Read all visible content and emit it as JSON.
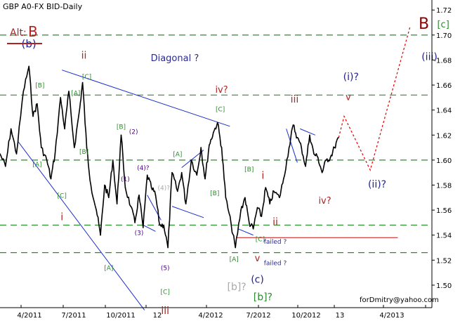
{
  "chart_data": {
    "type": "line",
    "title": "GBP A0-FX BID-Daily",
    "alt_label": {
      "prefix": "Alt:",
      "value": "B"
    },
    "corner_label": "B",
    "watermark": "forDmitry@yahoo.com",
    "x_ticks": [
      "4/2011",
      "7/2011",
      "10/2011",
      "12",
      "4/2012",
      "7/2012",
      "10/2012",
      "13",
      "4/2013"
    ],
    "y_ticks": [
      "1.72",
      "1.70",
      "1.68",
      "1.66",
      "1.64",
      "1.62",
      "1.60",
      "1.58",
      "1.56",
      "1.54",
      "1.52",
      "1.50"
    ],
    "ylim": [
      1.482,
      1.728
    ],
    "xlim": [
      0,
      25
    ],
    "grid": false,
    "colors": {
      "price": "#000000",
      "trendline": "#1a2ecc",
      "level": "#2e8b2e",
      "projection": "#dd1111",
      "support": "#cc1111",
      "wave_green": "#2e8b2e",
      "wave_red": "#b22222",
      "wave_navy": "#1f1f8f",
      "wave_purple": "#4b0082",
      "wave_gray": "#a9a9a9",
      "annotation_navy": "#2b2b8f",
      "axis_text": "#000000",
      "alt_red": "#b22222",
      "corner_red": "#8b0000"
    },
    "series": [
      {
        "values": [
          [
            0,
            1.605
          ],
          [
            0.4,
            1.595
          ],
          [
            0.8,
            1.625
          ],
          [
            1.2,
            1.605
          ],
          [
            1.7,
            1.655
          ],
          [
            2.1,
            1.675
          ],
          [
            2.4,
            1.635
          ],
          [
            2.7,
            1.645
          ],
          [
            3.0,
            1.61
          ],
          [
            3.4,
            1.6
          ],
          [
            3.7,
            1.585
          ],
          [
            4.0,
            1.605
          ],
          [
            4.4,
            1.65
          ],
          [
            4.7,
            1.625
          ],
          [
            5.0,
            1.655
          ],
          [
            5.4,
            1.61
          ],
          [
            5.8,
            1.642
          ],
          [
            6.0,
            1.662
          ],
          [
            6.3,
            1.61
          ],
          [
            6.6,
            1.58
          ],
          [
            7.0,
            1.56
          ],
          [
            7.3,
            1.54
          ],
          [
            7.6,
            1.58
          ],
          [
            7.9,
            1.57
          ],
          [
            8.2,
            1.6
          ],
          [
            8.5,
            1.565
          ],
          [
            8.8,
            1.62
          ],
          [
            9.1,
            1.578
          ],
          [
            9.5,
            1.563
          ],
          [
            9.8,
            1.55
          ],
          [
            10.1,
            1.572
          ],
          [
            10.4,
            1.546
          ],
          [
            10.7,
            1.588
          ],
          [
            11.0,
            1.578
          ],
          [
            11.3,
            1.572
          ],
          [
            11.6,
            1.548
          ],
          [
            11.9,
            1.548
          ],
          [
            12.2,
            1.53
          ],
          [
            12.5,
            1.59
          ],
          [
            12.9,
            1.575
          ],
          [
            13.2,
            1.59
          ],
          [
            13.5,
            1.565
          ],
          [
            13.9,
            1.6
          ],
          [
            14.3,
            1.588
          ],
          [
            14.6,
            1.61
          ],
          [
            14.9,
            1.585
          ],
          [
            15.2,
            1.612
          ],
          [
            15.5,
            1.622
          ],
          [
            15.8,
            1.63
          ],
          [
            16.1,
            1.61
          ],
          [
            16.4,
            1.57
          ],
          [
            16.8,
            1.548
          ],
          [
            17.1,
            1.53
          ],
          [
            17.5,
            1.56
          ],
          [
            17.8,
            1.57
          ],
          [
            18.1,
            1.55
          ],
          [
            18.4,
            1.545
          ],
          [
            18.7,
            1.562
          ],
          [
            19.0,
            1.555
          ],
          [
            19.3,
            1.578
          ],
          [
            19.6,
            1.565
          ],
          [
            19.9,
            1.575
          ],
          [
            20.3,
            1.57
          ],
          [
            20.6,
            1.585
          ],
          [
            21.0,
            1.61
          ],
          [
            21.3,
            1.628
          ],
          [
            21.6,
            1.618
          ],
          [
            21.9,
            1.61
          ],
          [
            22.2,
            1.595
          ],
          [
            22.5,
            1.62
          ],
          [
            22.8,
            1.605
          ],
          [
            23.1,
            1.602
          ],
          [
            23.4,
            1.59
          ],
          [
            23.7,
            1.6
          ],
          [
            24.0,
            1.602
          ],
          [
            24.3,
            1.61
          ],
          [
            24.6,
            1.618
          ]
        ]
      }
    ],
    "projection": [
      [
        24.6,
        1.618
      ],
      [
        25.0,
        1.635
      ],
      [
        26.9,
        1.592
      ],
      [
        29.8,
        1.707
      ]
    ],
    "levels": [
      1.7,
      1.652,
      1.6,
      1.548,
      1.526
    ],
    "support_line": {
      "from": [
        17.2,
        1.538
      ],
      "to": [
        28.9,
        1.538
      ]
    },
    "trendlines": [
      {
        "from": [
          4.5,
          1.672
        ],
        "to": [
          16.7,
          1.627
        ]
      },
      {
        "from": [
          1.3,
          1.615
        ],
        "to": [
          10.5,
          1.48
        ]
      },
      {
        "from": [
          13.2,
          1.594
        ],
        "to": [
          14.8,
          1.608
        ]
      },
      {
        "from": [
          12.5,
          1.563
        ],
        "to": [
          14.8,
          1.554
        ]
      },
      {
        "from": [
          10.7,
          1.572
        ],
        "to": [
          11.7,
          1.552
        ]
      },
      {
        "from": [
          10.4,
          1.548
        ],
        "to": [
          11.3,
          1.543
        ]
      },
      {
        "from": [
          17.3,
          1.545
        ],
        "to": [
          18.4,
          1.54
        ]
      },
      {
        "from": [
          20.8,
          1.625
        ],
        "to": [
          21.6,
          1.598
        ]
      },
      {
        "from": [
          21.8,
          1.625
        ],
        "to": [
          22.9,
          1.62
        ]
      }
    ],
    "wave_labels": [
      {
        "text": "(b)",
        "x": 2.1,
        "y": 1.69,
        "color": "wave_navy",
        "size": 15
      },
      {
        "text": "[B]",
        "x": 2.9,
        "y": 1.658,
        "color": "wave_green",
        "size": 9
      },
      {
        "text": "[A]",
        "x": 2.7,
        "y": 1.595,
        "color": "wave_green",
        "size": 9
      },
      {
        "text": "[C]",
        "x": 4.5,
        "y": 1.57,
        "color": "wave_green",
        "size": 9
      },
      {
        "text": "i",
        "x": 4.5,
        "y": 1.552,
        "color": "wave_red",
        "size": 14
      },
      {
        "text": "ii",
        "x": 6.1,
        "y": 1.681,
        "color": "wave_red",
        "size": 14
      },
      {
        "text": "[C]",
        "x": 6.3,
        "y": 1.665,
        "color": "wave_green",
        "size": 9
      },
      {
        "text": "[A]",
        "x": 5.5,
        "y": 1.652,
        "color": "wave_green",
        "size": 9
      },
      {
        "text": "[B]",
        "x": 6.1,
        "y": 1.605,
        "color": "wave_green",
        "size": 9
      },
      {
        "text": "[B]",
        "x": 8.8,
        "y": 1.625,
        "color": "wave_green",
        "size": 9
      },
      {
        "text": "(2)",
        "x": 9.7,
        "y": 1.621,
        "color": "wave_purple",
        "size": 9
      },
      {
        "text": "(1)",
        "x": 9.1,
        "y": 1.583,
        "color": "wave_purple",
        "size": 9
      },
      {
        "text": "(4)?",
        "x": 10.4,
        "y": 1.592,
        "color": "wave_purple",
        "size": 9
      },
      {
        "text": "(4)?",
        "x": 11.9,
        "y": 1.576,
        "color": "wave_gray",
        "size": 9
      },
      {
        "text": "(3)",
        "x": 10.1,
        "y": 1.54,
        "color": "wave_purple",
        "size": 9
      },
      {
        "text": "(5)",
        "x": 12.0,
        "y": 1.512,
        "color": "wave_purple",
        "size": 9
      },
      {
        "text": "[A]",
        "x": 7.9,
        "y": 1.512,
        "color": "wave_green",
        "size": 9
      },
      {
        "text": "[C]",
        "x": 12.0,
        "y": 1.493,
        "color": "wave_green",
        "size": 9
      },
      {
        "text": "iii",
        "x": 12.0,
        "y": 1.477,
        "color": "wave_red",
        "size": 14
      },
      {
        "text": "Diagonal ?",
        "x": 12.7,
        "y": 1.679,
        "color": "annotation_navy",
        "size": 13
      },
      {
        "text": "[A]",
        "x": 12.9,
        "y": 1.603,
        "color": "wave_green",
        "size": 9
      },
      {
        "text": "[B]",
        "x": 15.6,
        "y": 1.572,
        "color": "wave_green",
        "size": 9
      },
      {
        "text": "iv?",
        "x": 16.1,
        "y": 1.654,
        "color": "wave_red",
        "size": 13
      },
      {
        "text": "[C]",
        "x": 16.0,
        "y": 1.639,
        "color": "wave_green",
        "size": 9
      },
      {
        "text": "[A]",
        "x": 17.0,
        "y": 1.519,
        "color": "wave_green",
        "size": 9
      },
      {
        "text": "[b]?",
        "x": 17.2,
        "y": 1.496,
        "color": "wave_gray",
        "size": 14
      },
      {
        "text": "[B]",
        "x": 18.1,
        "y": 1.591,
        "color": "wave_green",
        "size": 9
      },
      {
        "text": "i",
        "x": 19.1,
        "y": 1.585,
        "color": "wave_red",
        "size": 14
      },
      {
        "text": "ii",
        "x": 20.0,
        "y": 1.548,
        "color": "wave_red",
        "size": 14
      },
      {
        "text": "[C]",
        "x": 18.9,
        "y": 1.535,
        "color": "wave_green",
        "size": 9
      },
      {
        "text": "v",
        "x": 18.7,
        "y": 1.519,
        "color": "wave_red",
        "size": 13
      },
      {
        "text": "(c)",
        "x": 18.7,
        "y": 1.502,
        "color": "wave_navy",
        "size": 14
      },
      {
        "text": "[b]?",
        "x": 19.1,
        "y": 1.488,
        "color": "wave_green",
        "size": 14
      },
      {
        "text": "iii",
        "x": 21.4,
        "y": 1.646,
        "color": "wave_red",
        "size": 14
      },
      {
        "text": "iv?",
        "x": 23.6,
        "y": 1.565,
        "color": "wave_red",
        "size": 13
      },
      {
        "text": "(i)?",
        "x": 25.5,
        "y": 1.664,
        "color": "wave_navy",
        "size": 14
      },
      {
        "text": "v",
        "x": 25.3,
        "y": 1.648,
        "color": "wave_red",
        "size": 13
      },
      {
        "text": "(ii)?",
        "x": 27.4,
        "y": 1.578,
        "color": "wave_navy",
        "size": 14
      },
      {
        "text": "(iii)",
        "x": 31.2,
        "y": 1.68,
        "color": "wave_navy",
        "size": 14
      },
      {
        "text": "[c]",
        "x": 32.2,
        "y": 1.706,
        "color": "wave_green",
        "size": 13
      }
    ],
    "notes": [
      {
        "text": "failed ?",
        "x": 20.0,
        "y": 1.533
      },
      {
        "text": "failed ?",
        "x": 20.0,
        "y": 1.516
      }
    ]
  }
}
